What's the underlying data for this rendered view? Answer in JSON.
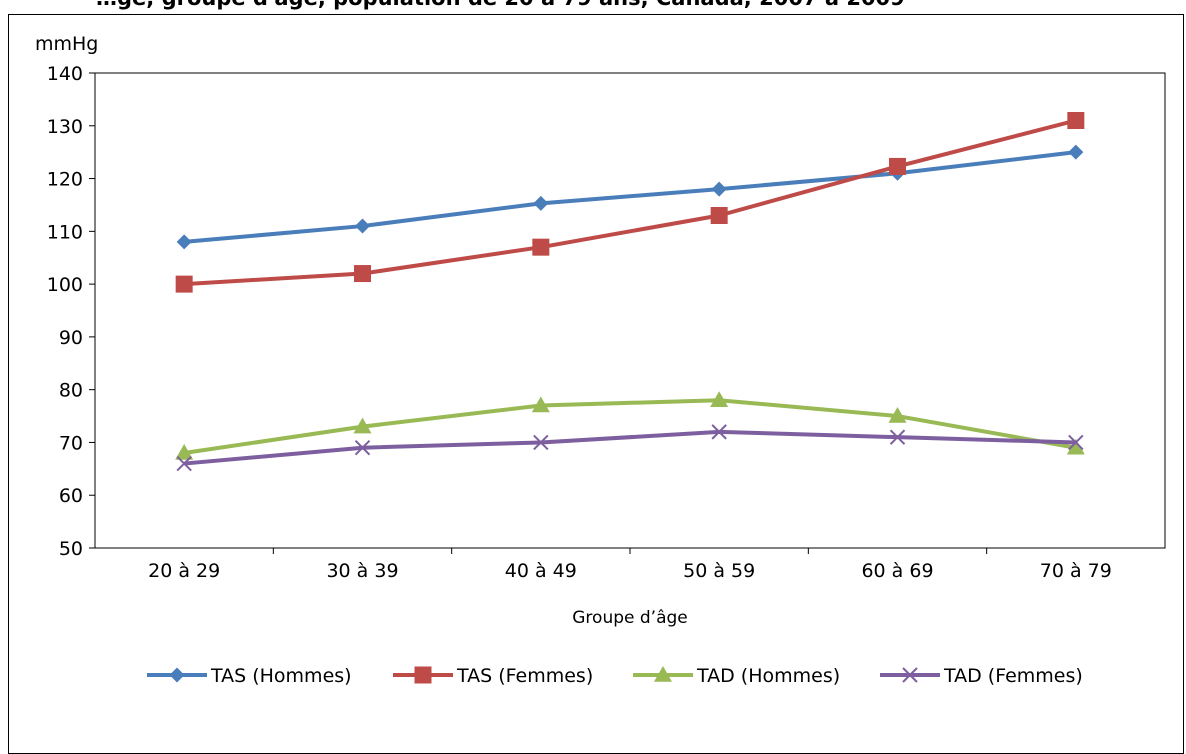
{
  "chart_data": {
    "type": "line",
    "title": "…ge, groupe d'âge, population de 20 à 79 ans, Canada, 2007 à 2009",
    "ylabel": "mmHg",
    "xlabel": "Groupe d’âge",
    "ylim": [
      50,
      140
    ],
    "yticks": [
      50,
      60,
      70,
      80,
      90,
      100,
      110,
      120,
      130,
      140
    ],
    "categories": [
      "20 à 29",
      "30 à 39",
      "40 à 49",
      "50 à 59",
      "60 à 69",
      "70 à 79"
    ],
    "grid": false,
    "legend_position": "bottom",
    "series": [
      {
        "name": "TAS (Hommes)",
        "marker": "diamond",
        "color": "#4a7ebb",
        "values": [
          108,
          111,
          115.3,
          118,
          121,
          125
        ]
      },
      {
        "name": "TAS (Femmes)",
        "marker": "square",
        "color": "#be4b48",
        "values": [
          100,
          102,
          107,
          113,
          122.3,
          131
        ]
      },
      {
        "name": "TAD (Hommes)",
        "marker": "triangle",
        "color": "#98b954",
        "values": [
          68,
          73,
          77,
          78,
          75,
          69
        ]
      },
      {
        "name": "TAD (Femmes)",
        "marker": "x",
        "color": "#7d5fa0",
        "values": [
          66,
          69,
          70,
          72,
          71,
          70
        ]
      }
    ]
  }
}
